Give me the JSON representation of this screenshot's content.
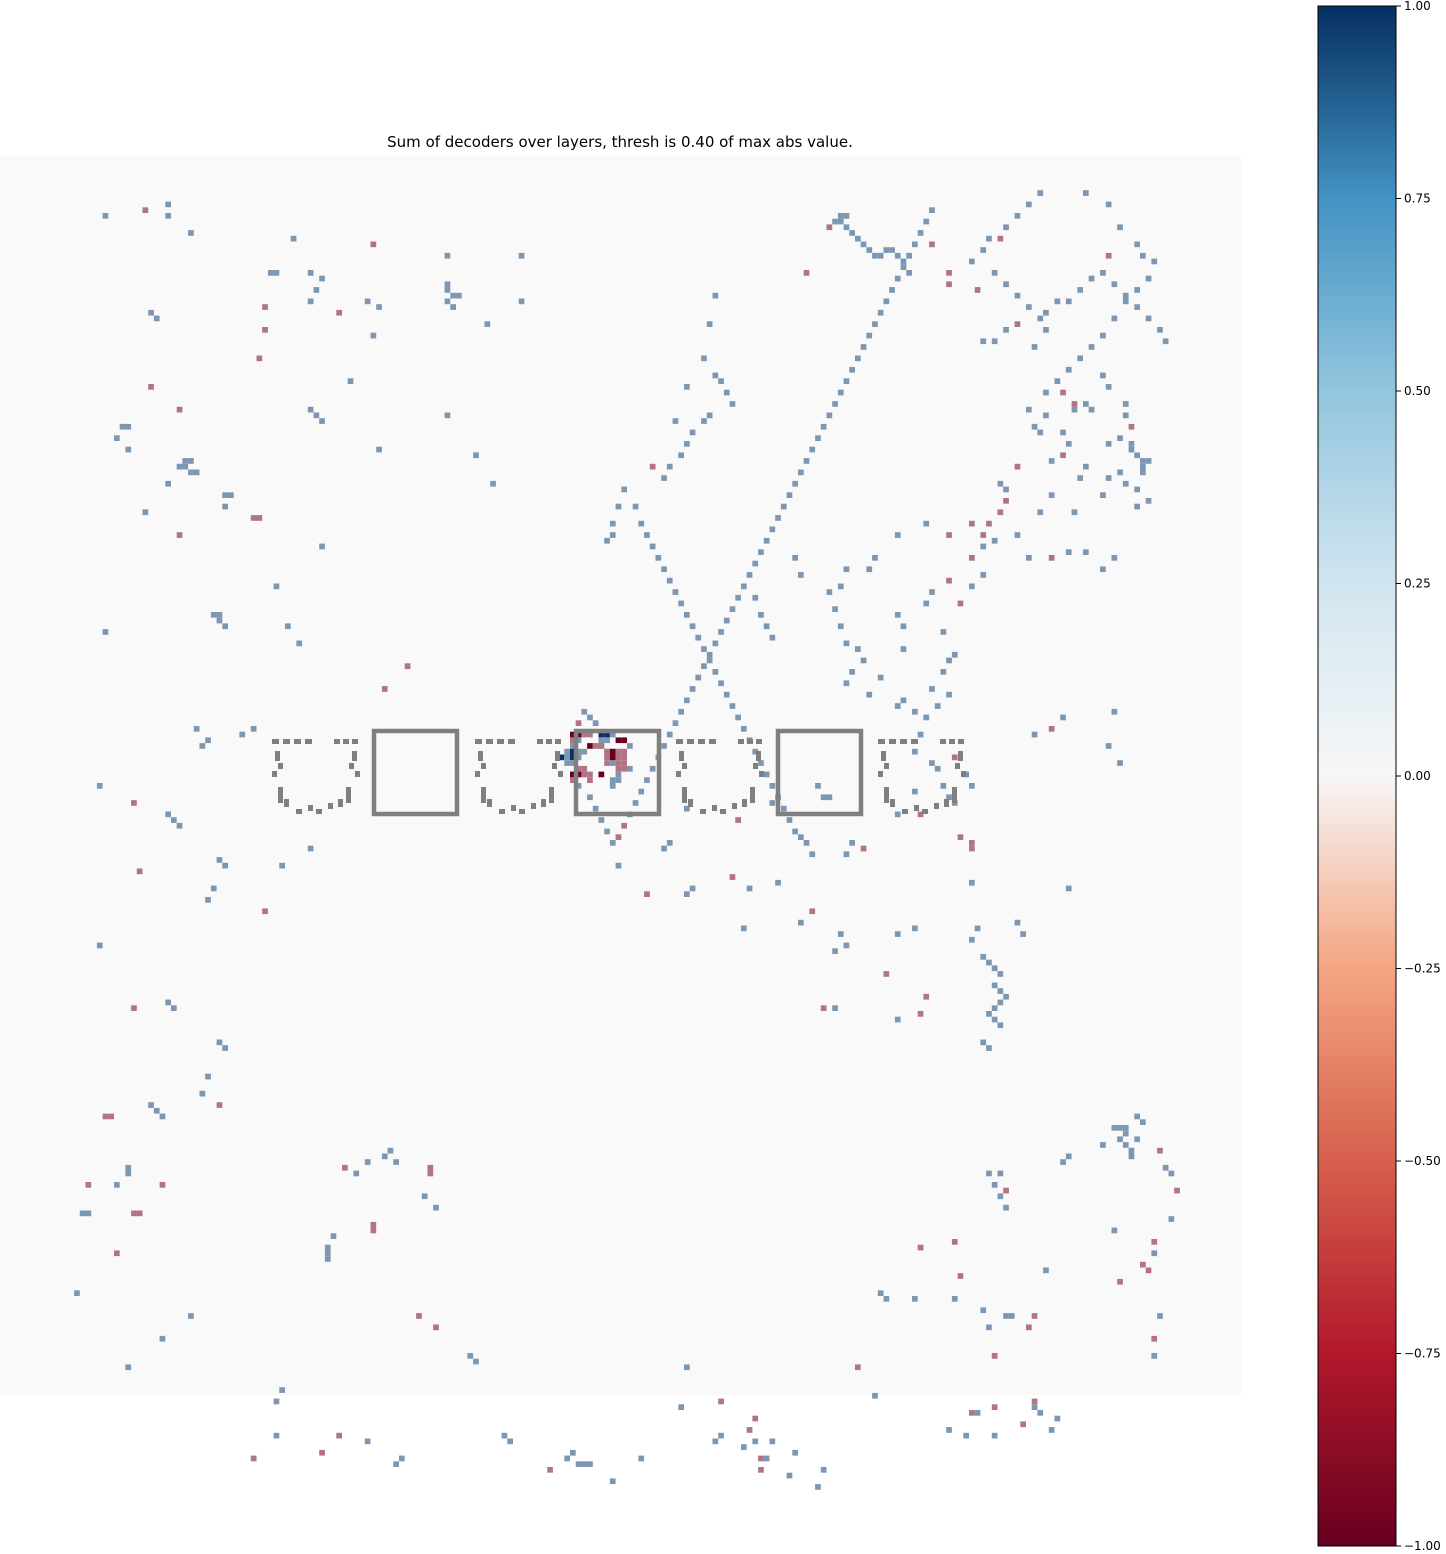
{
  "chart_data": {
    "type": "heatmap",
    "title": "Sum of decoders over layers, thresh is 0.40 of max abs value.",
    "xlabel": "",
    "ylabel": "",
    "grid": false,
    "axes_visible": false,
    "background_color": "#f9f9f9",
    "colormap": "RdBu",
    "positive_color": "#7d96b2",
    "negative_color": "#b07484",
    "strong_positive_color": "#08306b",
    "strong_negative_color": "#67001f",
    "overlay_color": "#7f7f7f",
    "colorbar": {
      "orientation": "vertical",
      "placement": "right",
      "vmin": -1.0,
      "vmax": 1.0,
      "ticks": [
        1.0,
        0.75,
        0.5,
        0.25,
        0.0,
        -0.25,
        -0.5,
        -0.75,
        -1.0
      ],
      "tick_labels": [
        "1.00",
        "0.75",
        "0.50",
        "0.25",
        "0.00",
        "−0.25",
        "−0.50",
        "−0.75",
        "−1.00"
      ]
    }
  }
}
